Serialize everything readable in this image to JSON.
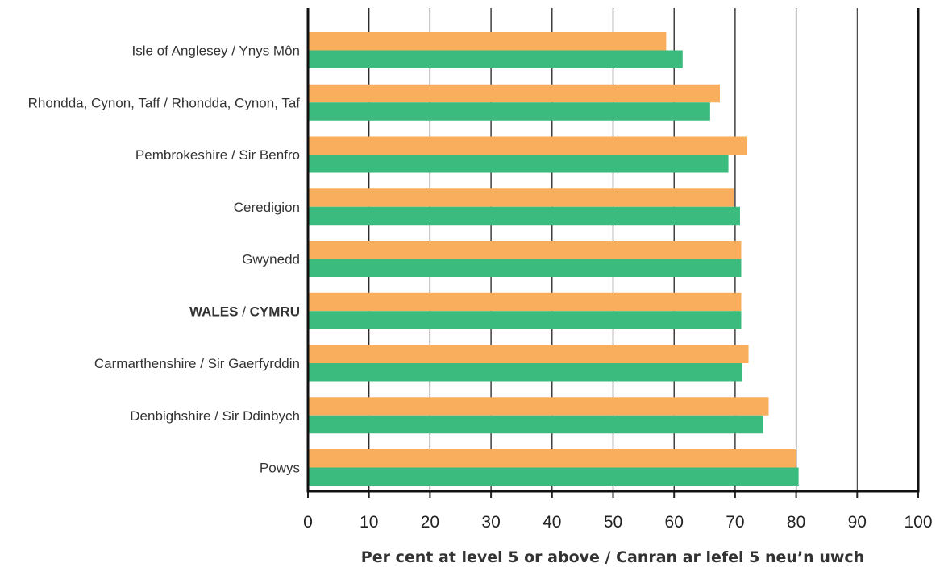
{
  "chart_data": {
    "type": "bar",
    "orientation": "horizontal",
    "categories": [
      [
        "Isle of Anglesey / Ynys Môn"
      ],
      [
        "Rhondda, Cynon, Taff / Rhondda, Cynon, Taf"
      ],
      [
        "Pembrokeshire / Sir Benfro"
      ],
      [
        "Ceredigion"
      ],
      [
        "Gwynedd"
      ],
      [
        "WALES",
        " / ",
        "CYMRU"
      ],
      [
        "Carmarthenshire / Sir Gaerfyrddin"
      ],
      [
        "Denbighshire / Sir Ddinbych"
      ],
      [
        "Powys"
      ]
    ],
    "series": [
      {
        "color": "#F9AE5E",
        "values": [
          58.7,
          67.5,
          72.0,
          69.8,
          71.0,
          71.0,
          72.2,
          75.5,
          80.0
        ]
      },
      {
        "color": "#3BBB7E",
        "values": [
          61.4,
          65.9,
          68.9,
          70.8,
          71.0,
          71.0,
          71.1,
          74.6,
          80.4
        ]
      }
    ],
    "x_ticks": [
      "0",
      "10",
      "20",
      "30",
      "40",
      "50",
      "60",
      "70",
      "80",
      "90",
      "100"
    ],
    "xlim": [
      0,
      100
    ],
    "xlabel": "Per cent at level 5 or above / Canran ar lefel 5 neu’n uwch",
    "title": "",
    "ylabel": "",
    "grid": "vertical",
    "legend": "none"
  }
}
